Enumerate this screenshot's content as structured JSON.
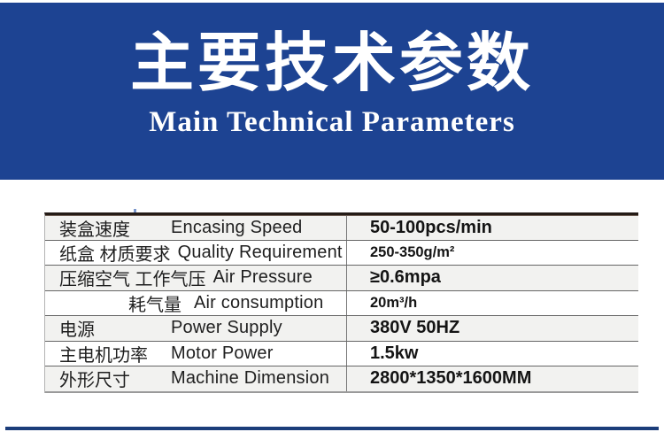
{
  "banner": {
    "title_zh": "主要技术参数",
    "title_en": "Main Technical Parameters",
    "bg_color": "#1d4392",
    "text_color": "#ffffff"
  },
  "table": {
    "rows": [
      {
        "zh": "装盒速度",
        "en": "Encasing Speed",
        "value": "50-100pcs/min",
        "shaded": true
      },
      {
        "zh": "纸盒 材质要求",
        "en": "Quality Requirement",
        "value": "250-350g/m²",
        "shaded": false,
        "value_small": true
      },
      {
        "zh": "压缩空气 工作气压",
        "en": "Air Pressure",
        "value": "≥0.6mpa",
        "shaded": true
      },
      {
        "zh": "耗气量",
        "en": "Air consumption",
        "value": "20m³/h",
        "shaded": false,
        "value_small": true,
        "indent": true
      },
      {
        "zh": "电源",
        "en": "Power Supply",
        "value": "380V 50HZ",
        "shaded": true
      },
      {
        "zh": "主电机功率",
        "en": "Motor Power",
        "value": "1.5kw",
        "shaded": false
      },
      {
        "zh": "外形尺寸",
        "en": "Machine Dimension",
        "value": "2800*1350*1600MM",
        "shaded": true
      }
    ]
  },
  "footer": {
    "bar_color": "#1b3d7a"
  }
}
